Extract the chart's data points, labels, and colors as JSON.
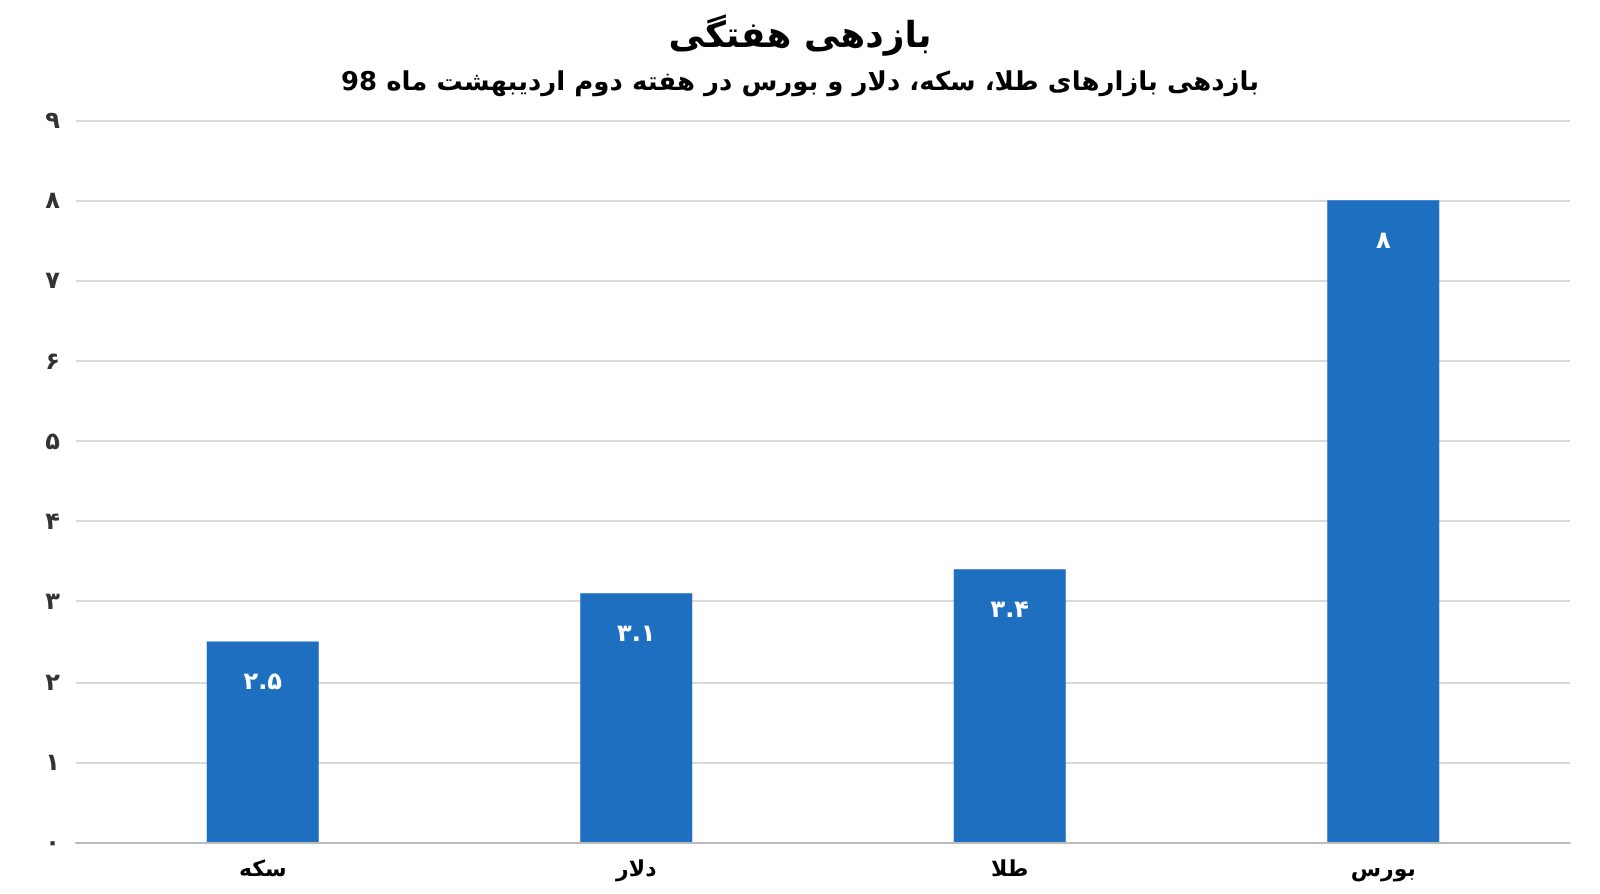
{
  "chart_data": {
    "type": "bar",
    "title": "بازدهی هفتگی",
    "subtitle": "بازدهی بازارهای طلا، سکه، دلار و بورس در هفته دوم اردیبهشت ماه 98",
    "categories": [
      "سکه",
      "دلار",
      "طلا",
      "بورس"
    ],
    "values": [
      2.5,
      3.1,
      3.4,
      8
    ],
    "value_labels": [
      "۲.۵",
      "۳.۱",
      "۳.۴",
      "۸"
    ],
    "color": "#1f6fc0",
    "ylim": [
      0,
      9
    ],
    "yticks": [
      {
        "value": 0,
        "label": "۰"
      },
      {
        "value": 1,
        "label": "۱"
      },
      {
        "value": 2,
        "label": "۲"
      },
      {
        "value": 3,
        "label": "۳"
      },
      {
        "value": 4,
        "label": "۴"
      },
      {
        "value": 5,
        "label": "۵"
      },
      {
        "value": 6,
        "label": "۶"
      },
      {
        "value": 7,
        "label": "۷"
      },
      {
        "value": 8,
        "label": "۸"
      },
      {
        "value": 9,
        "label": "۹"
      }
    ],
    "grid": "y"
  }
}
